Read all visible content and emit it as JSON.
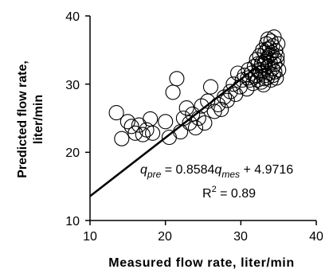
{
  "chart_data": {
    "type": "scatter",
    "xlabel": "Measured flow rate, liter/min",
    "ylabel_line1": "Predicted flow rate,",
    "ylabel_line2": "liter/min",
    "xlim": [
      10,
      40
    ],
    "ylim": [
      10,
      40
    ],
    "xticks": [
      "10",
      "20",
      "30",
      "40"
    ],
    "yticks": [
      "10",
      "20",
      "30",
      "40"
    ],
    "grid": false,
    "marker": "open-circle",
    "fit": {
      "slope": 0.8584,
      "intercept": 4.9716,
      "x_range": [
        10,
        32
      ]
    },
    "equation": {
      "q": "q",
      "pre": "pre",
      "middle": " = 0.8584",
      "mes": "mes",
      "suffix": " + 4.9716",
      "r2_prefix": "R",
      "r2_exp": "2",
      "r2_value": " = 0.89"
    },
    "points": [
      [
        13.5,
        25.8
      ],
      [
        14.2,
        22.0
      ],
      [
        15.0,
        24.5
      ],
      [
        15.5,
        23.8
      ],
      [
        16.0,
        22.8
      ],
      [
        16.5,
        24.0
      ],
      [
        17.0,
        22.6
      ],
      [
        17.5,
        23.3
      ],
      [
        18.0,
        24.9
      ],
      [
        18.3,
        22.8
      ],
      [
        20.0,
        24.5
      ],
      [
        20.5,
        22.2
      ],
      [
        21.0,
        28.8
      ],
      [
        21.5,
        30.8
      ],
      [
        22.0,
        23.0
      ],
      [
        22.4,
        25.0
      ],
      [
        22.8,
        26.5
      ],
      [
        23.2,
        24.3
      ],
      [
        23.6,
        25.6
      ],
      [
        24.0,
        23.6
      ],
      [
        24.4,
        25.0
      ],
      [
        24.8,
        26.8
      ],
      [
        25.2,
        24.3
      ],
      [
        25.6,
        27.5
      ],
      [
        26.0,
        29.6
      ],
      [
        26.5,
        26.0
      ],
      [
        27.0,
        27.0
      ],
      [
        27.4,
        26.3
      ],
      [
        27.8,
        28.1
      ],
      [
        28.2,
        27.6
      ],
      [
        28.6,
        28.9
      ],
      [
        29.0,
        30.0
      ],
      [
        29.3,
        28.5
      ],
      [
        29.6,
        31.6
      ],
      [
        29.9,
        29.6
      ],
      [
        30.2,
        30.6
      ],
      [
        30.5,
        31.3
      ],
      [
        30.8,
        29.3
      ],
      [
        31.0,
        32.1
      ],
      [
        31.2,
        30.6
      ],
      [
        31.4,
        31.6
      ],
      [
        31.6,
        30.1
      ],
      [
        31.8,
        32.6
      ],
      [
        32.0,
        31.3
      ],
      [
        32.1,
        33.6
      ],
      [
        32.2,
        30.6
      ],
      [
        32.4,
        32.0
      ],
      [
        32.5,
        34.2
      ],
      [
        32.6,
        31.6
      ],
      [
        32.7,
        30.3
      ],
      [
        32.8,
        33.1
      ],
      [
        32.9,
        35.0
      ],
      [
        33.0,
        31.9
      ],
      [
        33.0,
        29.9
      ],
      [
        33.1,
        32.9
      ],
      [
        33.2,
        34.6
      ],
      [
        33.3,
        31.3
      ],
      [
        33.4,
        33.6
      ],
      [
        33.4,
        35.9
      ],
      [
        33.5,
        30.9
      ],
      [
        33.6,
        32.6
      ],
      [
        33.6,
        36.6
      ],
      [
        33.7,
        34.1
      ],
      [
        33.8,
        31.6
      ],
      [
        33.8,
        35.3
      ],
      [
        33.9,
        33.1
      ],
      [
        34.0,
        36.3
      ],
      [
        34.0,
        30.6
      ],
      [
        34.1,
        34.6
      ],
      [
        34.2,
        32.3
      ],
      [
        34.2,
        35.6
      ],
      [
        34.3,
        31.3
      ],
      [
        34.4,
        33.9
      ],
      [
        34.4,
        36.9
      ],
      [
        34.5,
        32.9
      ],
      [
        34.6,
        34.9
      ],
      [
        34.7,
        30.9
      ],
      [
        34.8,
        33.4
      ],
      [
        34.9,
        35.9
      ],
      [
        35.0,
        32.1
      ],
      [
        33.2,
        33.3
      ],
      [
        32.7,
        32.7
      ],
      [
        33.9,
        34.3
      ],
      [
        34.5,
        31.8
      ],
      [
        31.9,
        31.1
      ],
      [
        30.9,
        30.9
      ],
      [
        32.3,
        33.0
      ],
      [
        33.5,
        35.1
      ],
      [
        34.8,
        34.1
      ],
      [
        33.1,
        30.8
      ]
    ]
  }
}
